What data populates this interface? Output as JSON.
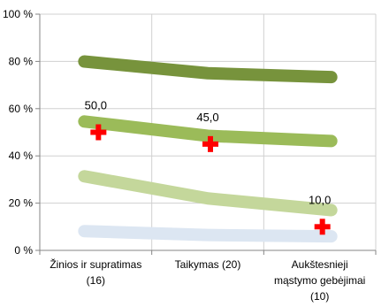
{
  "chart_data": {
    "type": "line",
    "categories": [
      [
        "Žinios ir supratimas",
        "(16)"
      ],
      [
        "Taikymas (20)"
      ],
      [
        "Aukštesnieji",
        "mąstymo gebėjimai",
        "(10)"
      ]
    ],
    "ylim": [
      0,
      100
    ],
    "yticks": [
      0,
      20,
      40,
      60,
      80,
      100
    ],
    "ytick_labels": [
      "0 %",
      "20 %",
      "40 %",
      "60 %",
      "80 %",
      "100 %"
    ],
    "grid": true,
    "series": [
      {
        "values": [
          8,
          6.5,
          6
        ],
        "color": "#dce6f2",
        "style": "thick-line"
      },
      {
        "values": [
          30.5,
          22,
          17.5
        ],
        "color": "#c4d79b",
        "style": "thick-line"
      },
      {
        "values": [
          54,
          48.5,
          46.5
        ],
        "color": "#9bbb59",
        "style": "thick-line"
      },
      {
        "values": [
          79.5,
          75,
          73.5
        ],
        "color": "#77933c",
        "style": "thick-line"
      },
      {
        "values": [
          50.0,
          45.0,
          10.0
        ],
        "color": "#ff0000",
        "style": "cross-marker",
        "labels": [
          "50,0",
          "45,0",
          "10,0"
        ]
      }
    ]
  }
}
